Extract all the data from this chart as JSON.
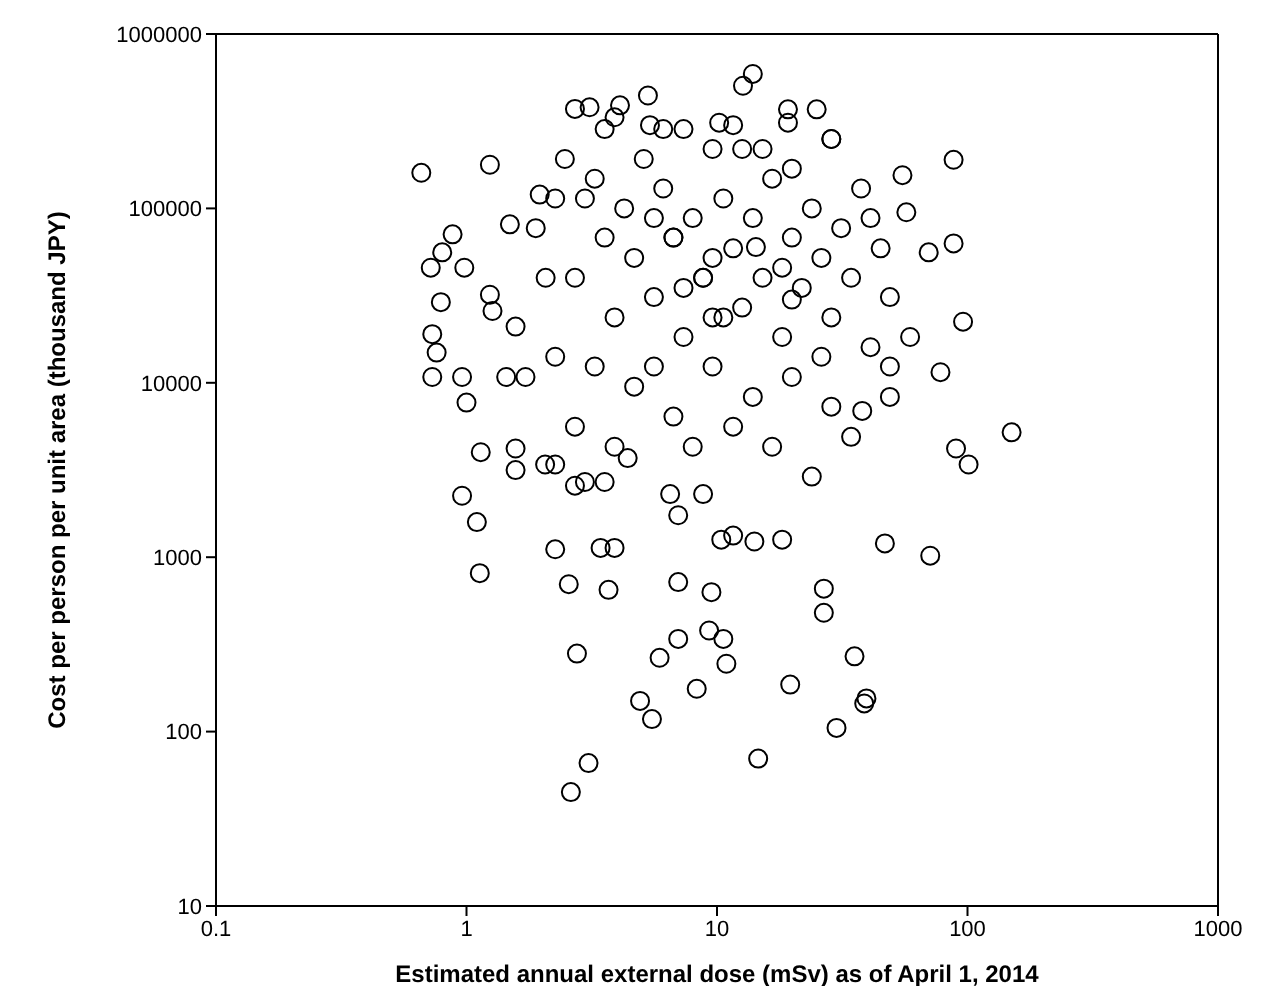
{
  "chart_data": {
    "type": "scatter",
    "xlabel": "Estimated annual external dose (mSv) as of April 1, 2014",
    "ylabel": "Cost per person per unit area (thousand JPY)",
    "log": "xy",
    "grid": false,
    "legend": false,
    "marker": "circle",
    "xlim": [
      0.1,
      1000
    ],
    "xticks": [
      0.1,
      1,
      10,
      100,
      1000
    ],
    "ylim": [
      10,
      1000000
    ],
    "yticks": [
      10,
      100,
      1000,
      10000,
      100000,
      1000000
    ],
    "series": [
      {
        "color": "#000000",
        "x": [
          0.66,
          1.24,
          0.72,
          0.8,
          0.88,
          0.98,
          0.79,
          0.73,
          0.76,
          0.73,
          0.96,
          1.0,
          1.14,
          1.57,
          1.96,
          1.49,
          1.24,
          1.27,
          2.71,
          3.1,
          5.3,
          4.1,
          5.4,
          6.1,
          3.9,
          0.96,
          1.1,
          1.13,
          1.57,
          2.06,
          2.26,
          2.71,
          2.97,
          3.56,
          4.4,
          2.26,
          2.56,
          3.43,
          3.9,
          3.69,
          2.76,
          3.07,
          2.61,
          4.93,
          5.5,
          5.9,
          7.0,
          7.0,
          8.3,
          9.3,
          9.5,
          10.6,
          10.9,
          7.0,
          6.5,
          8.8,
          10.4,
          11.6,
          14.1,
          18.2,
          46.8,
          71,
          26.7,
          26.7,
          35.4,
          19.6,
          39.5,
          38.7,
          30,
          14.6,
          90,
          101,
          150,
          88,
          88,
          70,
          96,
          78,
          49,
          38,
          55,
          57,
          28.6,
          25,
          13.9,
          12.7,
          19.2,
          19.2,
          10.2,
          11.6,
          1.89,
          2.26,
          2.71,
          3.25,
          3.56,
          3.9,
          4.26,
          4.67,
          5.1,
          5.6,
          6.1,
          6.7,
          7.35,
          8.0,
          8.8,
          9.6,
          10.6,
          11.6,
          12.6,
          13.9,
          15.2,
          16.6,
          18.2,
          19.9,
          21.8,
          23.9,
          26.1,
          28.6,
          31.3,
          34.3,
          37.6,
          41,
          45,
          49,
          3.25,
          4.67,
          6.7,
          9.6,
          13.9,
          19.9,
          28.6,
          2.26,
          1.57,
          1.72,
          2.71,
          8.0,
          11.6,
          16.6,
          23.9,
          34.3,
          49,
          59,
          3.56,
          7.35,
          9.6,
          15.2,
          19.9,
          28.6,
          2.47,
          41,
          5.6,
          3.9,
          1.44,
          2.07,
          2.97,
          8.8,
          12.6,
          26.1,
          7.35,
          10.6,
          18.2,
          5.6,
          9.6,
          6.7,
          19.9,
          14.3
        ],
        "values": [
          160000,
          178000,
          45700,
          56000,
          71000,
          45700,
          29000,
          19000,
          14900,
          10800,
          10800,
          7700,
          4000,
          4200,
          120000,
          81000,
          32000,
          25800,
          372000,
          380000,
          444000,
          390000,
          300000,
          285000,
          333000,
          2250,
          1590,
          810,
          3160,
          3400,
          3400,
          2570,
          2700,
          2700,
          3700,
          1110,
          700,
          1130,
          1130,
          650,
          280,
          66,
          45,
          150,
          118,
          265,
          340,
          720,
          176,
          380,
          630,
          340,
          245,
          1740,
          2300,
          2300,
          1260,
          1330,
          1230,
          1260,
          1200,
          1020,
          660,
          480,
          270,
          186,
          155,
          145,
          105,
          70,
          4200,
          3400,
          5200,
          190000,
          63000,
          56000,
          22400,
          11500,
          8300,
          6900,
          155000,
          95000,
          250000,
          370000,
          590000,
          505000,
          370000,
          310000,
          310000,
          300000,
          77000,
          114000,
          40000,
          148000,
          68000,
          23700,
          100000,
          52000,
          192000,
          31000,
          130000,
          68000,
          18300,
          88000,
          40000,
          52000,
          114000,
          59000,
          27000,
          88000,
          40000,
          148000,
          18300,
          68000,
          35000,
          100000,
          52000,
          23700,
          77000,
          40000,
          130000,
          16000,
          59000,
          31000,
          12400,
          9500,
          6400,
          12400,
          8300,
          10800,
          7300,
          14100,
          21000,
          10800,
          5600,
          4300,
          5600,
          4300,
          2900,
          4900,
          12400,
          18300,
          285000,
          285000,
          219000,
          219000,
          169000,
          250000,
          192000,
          88000,
          12400,
          4300,
          10800,
          40000,
          114000,
          40000,
          219000,
          14100,
          35000,
          23700,
          45700,
          88000,
          23700,
          68000,
          30000,
          60000
        ]
      }
    ]
  }
}
